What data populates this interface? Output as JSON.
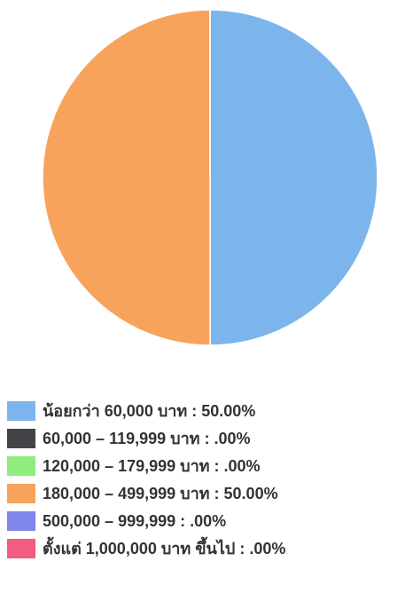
{
  "chart_data": {
    "type": "pie",
    "categories": [
      "น้อยกว่า 60,000 บาท : 50.00%",
      "60,000 – 119,999 บาท : .00%",
      "120,000 – 179,999 บาท : .00%",
      "180,000 – 499,999 บาท : 50.00%",
      "500,000 – 999,999 : .00%",
      "ตั้งแต่ 1,000,000 บาท ขึ้นไป : .00%"
    ],
    "values": [
      50,
      0,
      0,
      50,
      0,
      0
    ],
    "colors": [
      "#7cb5ec",
      "#434348",
      "#90ed7d",
      "#f7a35c",
      "#8085e9",
      "#f15c80"
    ],
    "legend": "bottom"
  }
}
